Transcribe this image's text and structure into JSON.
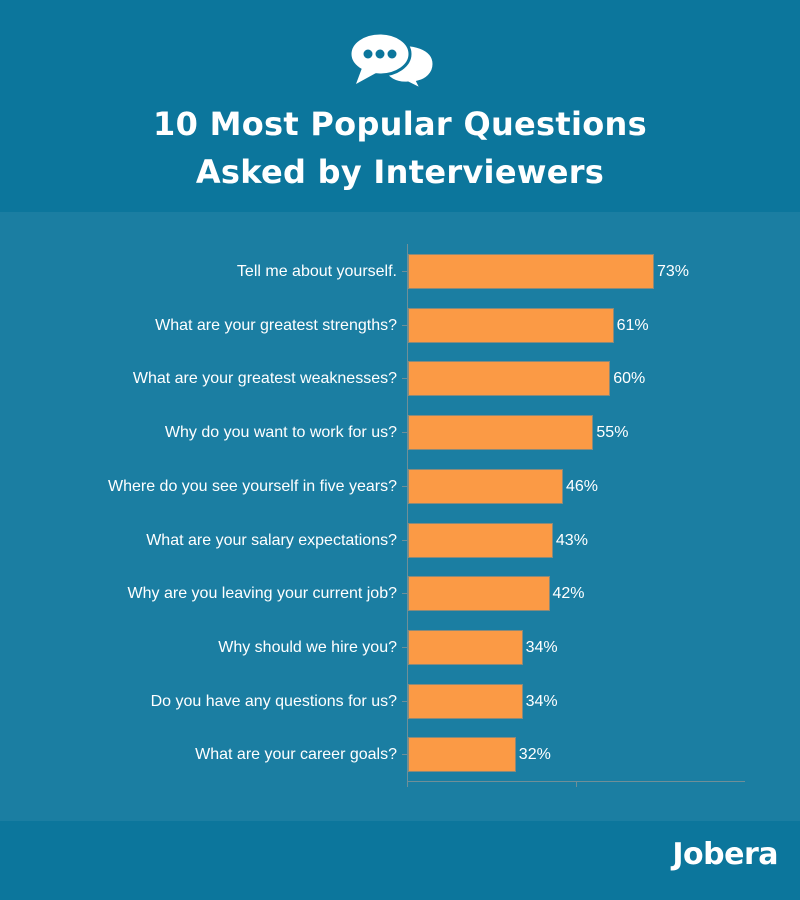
{
  "header": {
    "icon": "speech-bubbles-icon",
    "title_line1": "10 Most Popular Questions",
    "title_line2": "Asked by Interviewers"
  },
  "footer": {
    "logo": "Jobera"
  },
  "colors": {
    "header_bg": "#0c769c",
    "chart_bg": "#1b7ea2",
    "bar": "#fb9a45",
    "text": "#ffffff"
  },
  "chart_data": {
    "type": "bar",
    "orientation": "horizontal",
    "title": "10 Most Popular Questions Asked by Interviewers",
    "xlabel": "",
    "ylabel": "",
    "xlim": [
      0,
      100
    ],
    "grid": false,
    "legend": null,
    "categories": [
      "Tell me about yourself.",
      "What are your greatest strengths?",
      "What are your greatest weaknesses?",
      "Why do you want to work for us?",
      "Where do you see yourself in five years?",
      "What are your salary expectations?",
      "Why are you leaving your current job?",
      "Why should we hire you?",
      "Do you have any questions for us?",
      "What are your career goals?"
    ],
    "values": [
      73,
      61,
      60,
      55,
      46,
      43,
      42,
      34,
      34,
      32
    ],
    "value_labels": [
      "73%",
      "61%",
      "60%",
      "55%",
      "46%",
      "43%",
      "42%",
      "34%",
      "34%",
      "32%"
    ]
  }
}
